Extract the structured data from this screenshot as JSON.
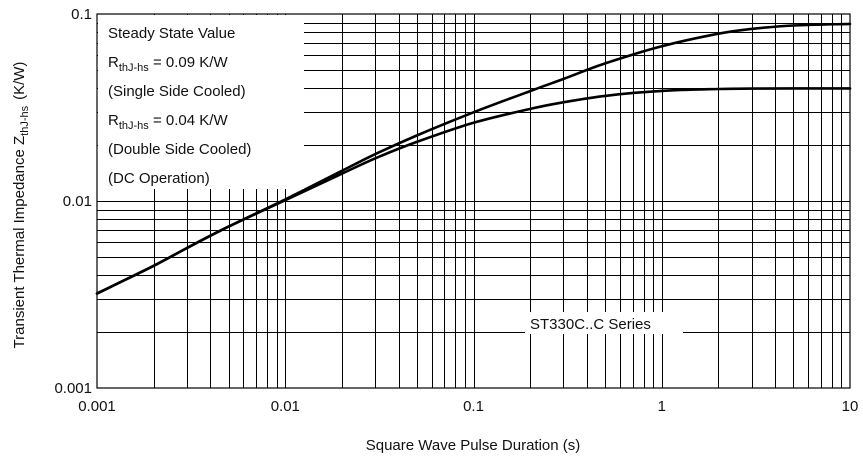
{
  "chart_data": {
    "type": "line",
    "x_scale": "log",
    "y_scale": "log",
    "xlim": [
      0.001,
      10
    ],
    "ylim": [
      0.001,
      0.1
    ],
    "grid": true,
    "xlabel": "Square Wave Pulse Duration (s)",
    "ylabel_main": "Transient Thermal Impedance Z",
    "ylabel_sub": "thJ-hs",
    "ylabel_unit": "(K/W)",
    "x_ticks": [
      {
        "value": 0.001,
        "label": "0.001"
      },
      {
        "value": 0.01,
        "label": "0.01"
      },
      {
        "value": 0.1,
        "label": "0.1"
      },
      {
        "value": 1,
        "label": "1"
      },
      {
        "value": 10,
        "label": "10"
      }
    ],
    "y_ticks": [
      {
        "value": 0.001,
        "label": "0.001"
      },
      {
        "value": 0.01,
        "label": "0.01"
      },
      {
        "value": 0.1,
        "label": "0.1"
      }
    ],
    "annotation_block": [
      {
        "main": "Steady State Value",
        "sub": "",
        "rest": ""
      },
      {
        "main": "R",
        "sub": "thJ-hs",
        "rest": " = 0.09 K/W"
      },
      {
        "main": "(Single Side Cooled)",
        "sub": "",
        "rest": ""
      },
      {
        "main": "R",
        "sub": "thJ-hs",
        "rest": " = 0.04 K/W"
      },
      {
        "main": "(Double Side Cooled)",
        "sub": "",
        "rest": ""
      },
      {
        "main": "(DC Operation)",
        "sub": "",
        "rest": ""
      }
    ],
    "series_label": "ST330C..C Series",
    "series": [
      {
        "x": [
          0.001,
          0.002,
          0.003,
          0.005,
          0.01,
          0.02,
          0.03,
          0.05,
          0.1,
          0.2,
          0.3,
          0.5,
          1,
          2,
          3,
          5,
          10
        ],
        "y": [
          0.0032,
          0.0045,
          0.0056,
          0.0073,
          0.0102,
          0.0145,
          0.0178,
          0.0224,
          0.0298,
          0.0387,
          0.0449,
          0.0544,
          0.0672,
          0.0785,
          0.0832,
          0.0868,
          0.0885
        ]
      },
      {
        "x": [
          0.001,
          0.002,
          0.003,
          0.005,
          0.01,
          0.02,
          0.03,
          0.05,
          0.1,
          0.2,
          0.3,
          0.5,
          1,
          2,
          3,
          5,
          10
        ],
        "y": [
          0.0032,
          0.0045,
          0.0056,
          0.0073,
          0.0101,
          0.014,
          0.0169,
          0.0207,
          0.0262,
          0.0311,
          0.0337,
          0.0365,
          0.0388,
          0.0397,
          0.0399,
          0.04,
          0.04
        ]
      }
    ]
  }
}
